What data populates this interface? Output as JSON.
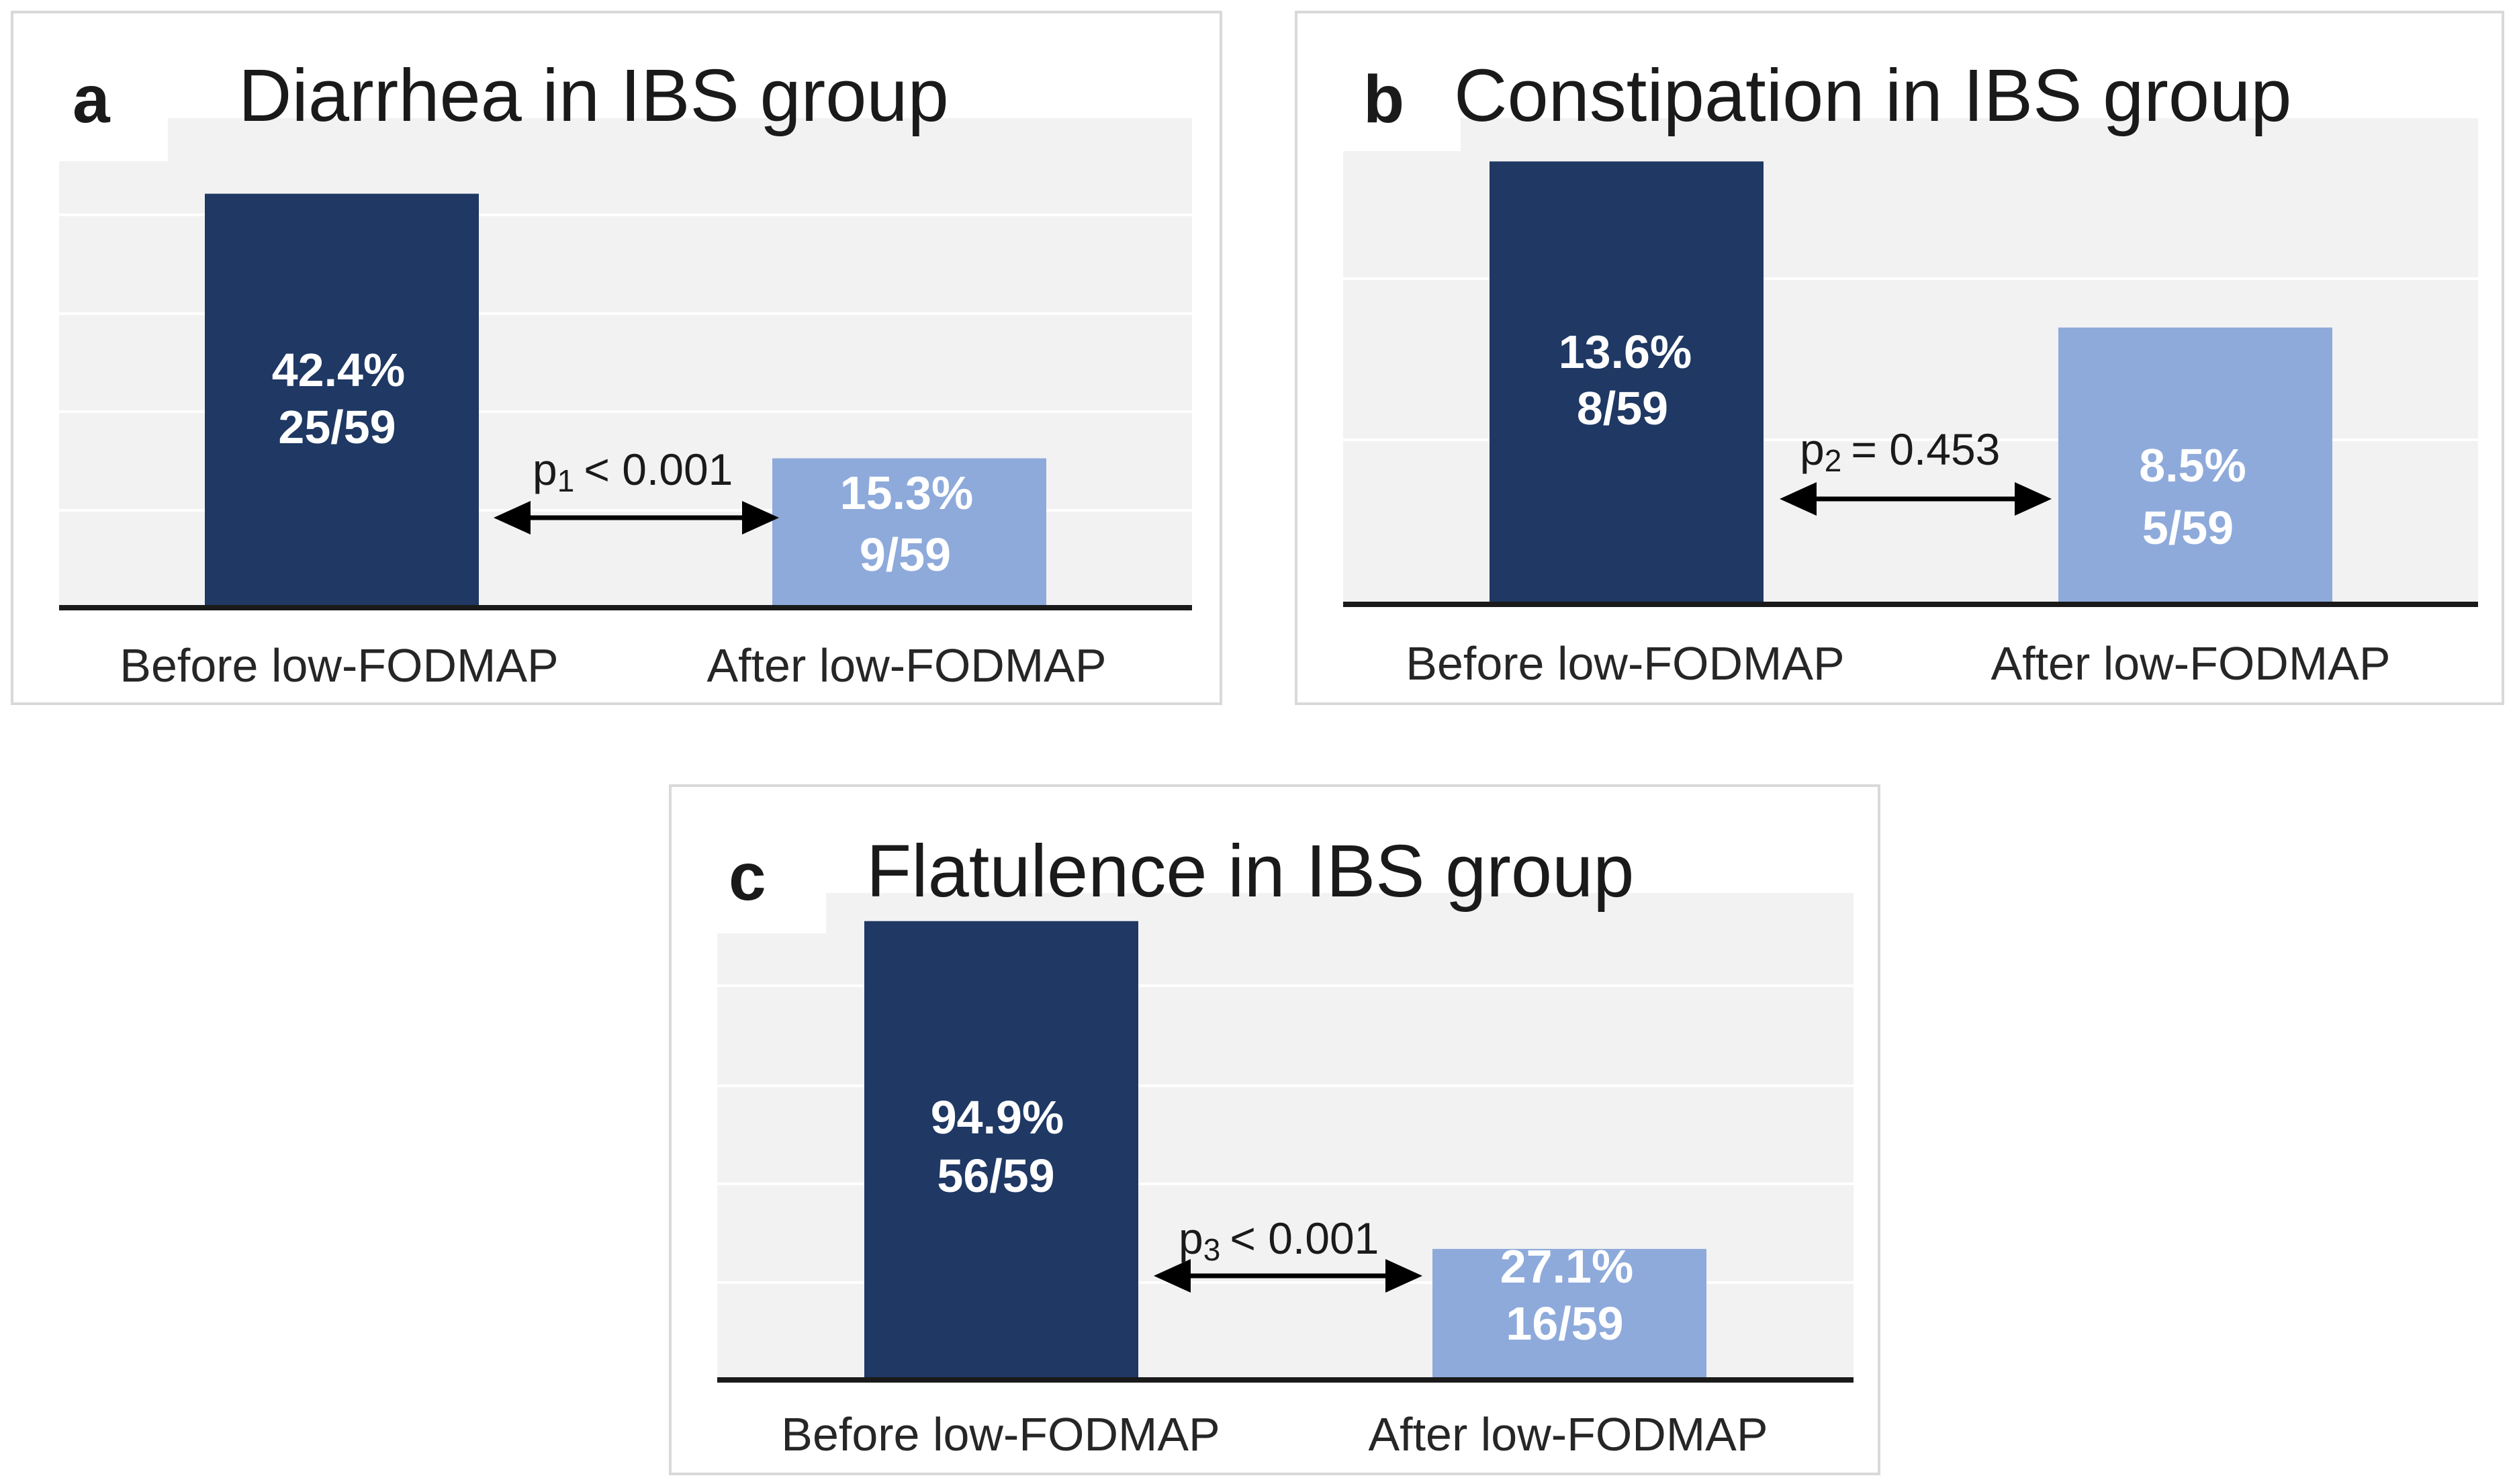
{
  "colors": {
    "before": "#1f3864",
    "after": "#8eaadb"
  },
  "chart_data": [
    {
      "type": "bar",
      "panel": "a",
      "title": "Diarrhea in IBS group",
      "categories": [
        "Before low-FODMAP",
        "After low-FODMAP"
      ],
      "values": [
        42.4,
        15.3
      ],
      "value_labels": [
        "42.4%",
        "15.3%"
      ],
      "count_labels": [
        "25/59",
        "9/59"
      ],
      "comparison": {
        "p_sub": "1",
        "relation": "< 0.001"
      },
      "ylim": [
        0,
        50
      ],
      "xlabel": "",
      "ylabel": "",
      "grid": true
    },
    {
      "type": "bar",
      "panel": "b",
      "title": "Constipation in IBS group",
      "categories": [
        "Before low-FODMAP",
        "After low-FODMAP"
      ],
      "values": [
        13.6,
        8.5
      ],
      "value_labels": [
        "13.6%",
        "8.5%"
      ],
      "count_labels": [
        "8/59",
        "5/59"
      ],
      "comparison": {
        "p_sub": "2",
        "relation": "= 0.453"
      },
      "ylim": [
        0,
        16
      ],
      "xlabel": "",
      "ylabel": "",
      "grid": true
    },
    {
      "type": "bar",
      "panel": "c",
      "title": "Flatulence in IBS group",
      "categories": [
        "Before low-FODMAP",
        "After low-FODMAP"
      ],
      "values": [
        94.9,
        27.1
      ],
      "value_labels": [
        "94.9%",
        "27.1%"
      ],
      "count_labels": [
        "56/59",
        "16/59"
      ],
      "comparison": {
        "p_sub": "3",
        "relation": "< 0.001"
      },
      "ylim": [
        0,
        100
      ],
      "xlabel": "",
      "ylabel": "",
      "grid": true
    }
  ]
}
